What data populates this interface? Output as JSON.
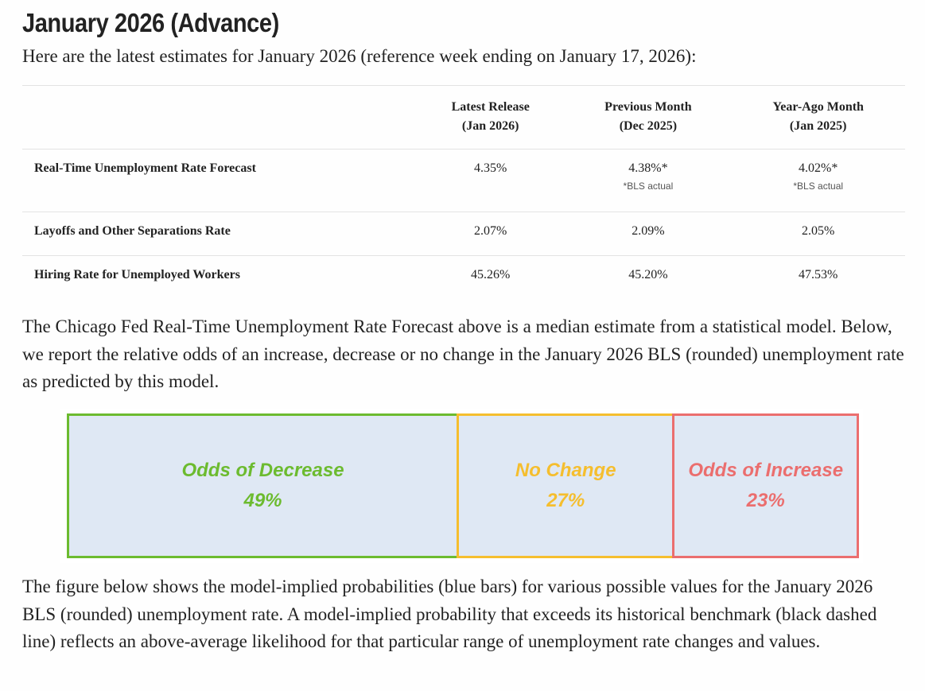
{
  "header": {
    "title": "January 2026 (Advance)",
    "intro": "Here are the latest estimates for January 2026 (reference week ending on January 17, 2026):"
  },
  "table": {
    "columns": [
      {
        "name": "Latest Release",
        "period": "(Jan 2026)"
      },
      {
        "name": "Previous Month",
        "period": "(Dec 2025)"
      },
      {
        "name": "Year-Ago Month",
        "period": "(Jan 2025)"
      }
    ],
    "rows": [
      {
        "label": "Real-Time Unemployment Rate Forecast",
        "cells": [
          {
            "text": "4.35%"
          },
          {
            "text": "4.38%*",
            "note": "*BLS actual"
          },
          {
            "text": "4.02%*",
            "note": "*BLS actual"
          }
        ]
      },
      {
        "label": "Layoffs and Other Separations Rate",
        "cells": [
          {
            "text": "2.07%"
          },
          {
            "text": "2.09%"
          },
          {
            "text": "2.05%"
          }
        ]
      },
      {
        "label": "Hiring Rate for Unemployed Workers",
        "cells": [
          {
            "text": "45.26%"
          },
          {
            "text": "45.20%"
          },
          {
            "text": "47.53%"
          }
        ]
      }
    ]
  },
  "paragraphs": [
    "The Chicago Fed Real-Time Unemployment Rate Forecast above is a median estimate from a statistical model. Below, we report the relative odds of an increase, decrease or no change in the January 2026 BLS (rounded) unemployment rate as predicted by this model.",
    "The figure below shows the model-implied probabilities (blue bars) for various possible values for the January 2026 BLS (rounded) unemployment rate. A model-implied probability that exceeds its historical benchmark (black dashed line) reflects an above-average likelihood for that particular range of unemployment rate changes and values."
  ],
  "odds": [
    {
      "label": "Odds of Decrease",
      "value": 49,
      "value_label": "49%",
      "color": "#6cbb2f"
    },
    {
      "label": "No Change",
      "value": 27,
      "value_label": "27%",
      "color": "#f5be2e"
    },
    {
      "label": "Odds of Increase",
      "value": 23,
      "value_label": "23%",
      "color": "#eb6e6e"
    }
  ]
}
